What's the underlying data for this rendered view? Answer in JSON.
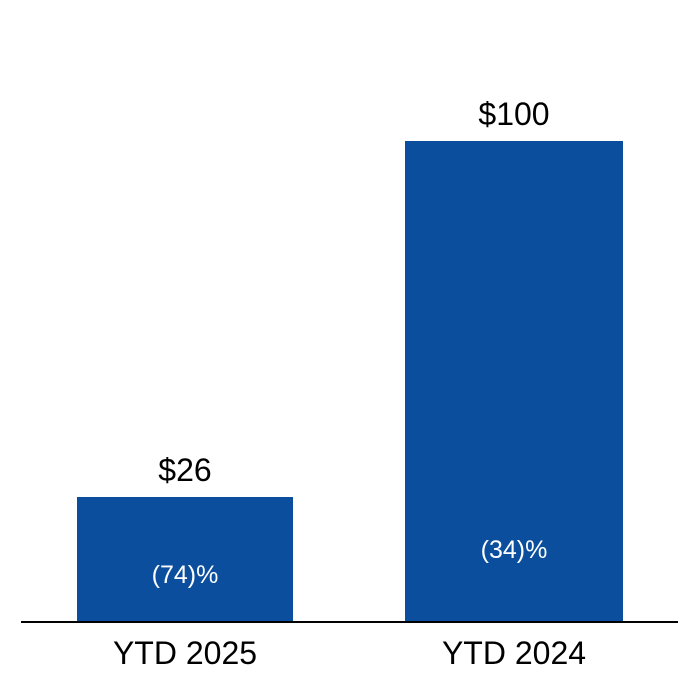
{
  "chart_data": {
    "type": "bar",
    "categories": [
      "YTD 2025",
      "YTD 2024"
    ],
    "values": [
      26,
      100
    ],
    "value_labels": [
      "$26",
      "$100"
    ],
    "inside_labels": [
      "(74)%",
      "(34)%"
    ],
    "title": "",
    "xlabel": "",
    "ylabel": "",
    "ylim": [
      0,
      110
    ],
    "grid": false,
    "legend": false,
    "colors": {
      "bar_fill": "#0A4E9D",
      "axis_line": "#000000",
      "value_label_text": "#000000",
      "category_label_text": "#000000",
      "inside_label_text": "#FFFFFF",
      "background": "#FFFFFF"
    }
  }
}
